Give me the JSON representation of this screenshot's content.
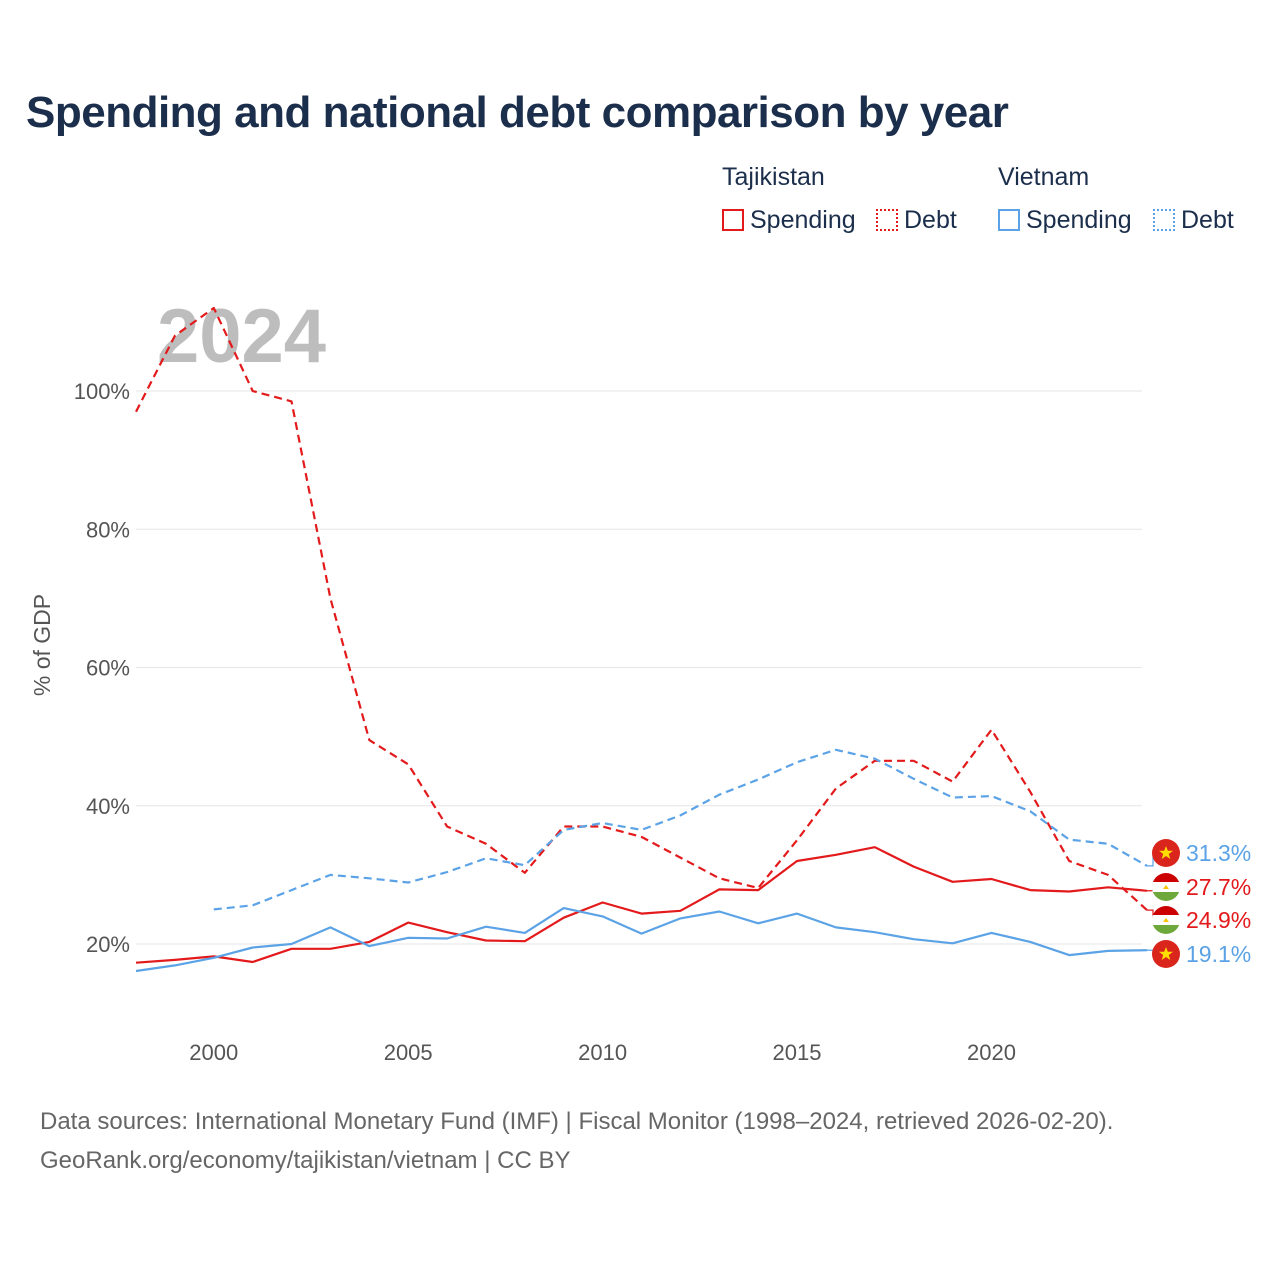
{
  "title": "Spending and national debt comparison by year",
  "legend": {
    "groups": [
      {
        "country": "Tajikistan",
        "color": "#e31a1c",
        "items": [
          {
            "label": "Spending",
            "style": "solid"
          },
          {
            "label": "Debt",
            "style": "dotted"
          }
        ]
      },
      {
        "country": "Vietnam",
        "color": "#5ba3e6",
        "items": [
          {
            "label": "Spending",
            "style": "solid"
          },
          {
            "label": "Debt",
            "style": "dotted"
          }
        ]
      }
    ]
  },
  "year_watermark": "2024",
  "footer": {
    "line1": "Data sources: International Monetary Fund (IMF) | Fiscal Monitor (1998–2024, retrieved 2026-02-20).",
    "line2": "GeoRank.org/economy/tajikistan/vietnam | CC BY"
  },
  "end_labels": [
    {
      "text": "31.3%",
      "color": "#5ba3e6",
      "flag": "vietnam-flag-icon"
    },
    {
      "text": "27.7%",
      "color": "#e31a1c",
      "flag": "tajikistan-flag-icon"
    },
    {
      "text": "24.9%",
      "color": "#e31a1c",
      "flag": "tajikistan-flag-icon"
    },
    {
      "text": "19.1%",
      "color": "#5ba3e6",
      "flag": "vietnam-flag-icon"
    }
  ],
  "chart_data": {
    "type": "line",
    "title": "Spending and national debt comparison by year",
    "xlabel": "",
    "ylabel": "% of GDP",
    "xlim": [
      1998,
      2024
    ],
    "ylim": [
      10,
      115
    ],
    "yticks": [
      20,
      40,
      60,
      80,
      100
    ],
    "ytick_labels": [
      "20%",
      "40%",
      "60%",
      "80%",
      "100%"
    ],
    "xticks": [
      2000,
      2005,
      2010,
      2015,
      2020
    ],
    "grid": true,
    "series": [
      {
        "name": "Tajikistan Debt",
        "country": "Tajikistan",
        "kind": "Debt",
        "color": "#e31a1c",
        "dash": "dashed",
        "x": [
          1998,
          1999,
          2000,
          2001,
          2002,
          2003,
          2004,
          2005,
          2006,
          2007,
          2008,
          2009,
          2010,
          2011,
          2012,
          2013,
          2014,
          2015,
          2016,
          2017,
          2018,
          2019,
          2020,
          2021,
          2022,
          2023,
          2024
        ],
        "values": [
          97,
          108,
          112,
          100,
          98.5,
          70,
          49.5,
          46,
          37,
          34.5,
          30.3,
          37,
          37,
          35.5,
          32.5,
          29.5,
          28.1,
          35,
          42.5,
          46.5,
          46.5,
          43.5,
          51,
          42,
          32,
          30,
          24.9
        ]
      },
      {
        "name": "Tajikistan Spending",
        "country": "Tajikistan",
        "kind": "Spending",
        "color": "#e31a1c",
        "dash": "solid",
        "x": [
          1998,
          1999,
          2000,
          2001,
          2002,
          2003,
          2004,
          2005,
          2006,
          2007,
          2008,
          2009,
          2010,
          2011,
          2012,
          2013,
          2014,
          2015,
          2016,
          2017,
          2018,
          2019,
          2020,
          2021,
          2022,
          2023,
          2024
        ],
        "values": [
          17.3,
          17.7,
          18.2,
          17.4,
          19.3,
          19.3,
          20.3,
          23.1,
          21.7,
          20.5,
          20.4,
          23.8,
          26,
          24.4,
          24.8,
          27.9,
          27.8,
          32,
          32.9,
          34,
          31.2,
          29,
          29.4,
          27.8,
          27.6,
          28.2,
          27.7
        ]
      },
      {
        "name": "Vietnam Debt",
        "country": "Vietnam",
        "kind": "Debt",
        "color": "#5ba3e6",
        "dash": "dashed",
        "x": [
          2000,
          2001,
          2002,
          2003,
          2004,
          2005,
          2006,
          2007,
          2008,
          2009,
          2010,
          2011,
          2012,
          2013,
          2014,
          2015,
          2016,
          2017,
          2018,
          2019,
          2020,
          2021,
          2022,
          2023,
          2024
        ],
        "values": [
          25,
          25.6,
          27.8,
          30,
          29.5,
          28.9,
          30.4,
          32.4,
          31.4,
          36.5,
          37.5,
          36.5,
          38.6,
          41.6,
          43.8,
          46.3,
          48.1,
          46.8,
          43.9,
          41.2,
          41.4,
          39.2,
          35.1,
          34.5,
          31.3
        ]
      },
      {
        "name": "Vietnam Spending",
        "country": "Vietnam",
        "kind": "Spending",
        "color": "#5ba3e6",
        "dash": "solid",
        "x": [
          1998,
          1999,
          2000,
          2001,
          2002,
          2003,
          2004,
          2005,
          2006,
          2007,
          2008,
          2009,
          2010,
          2011,
          2012,
          2013,
          2014,
          2015,
          2016,
          2017,
          2018,
          2019,
          2020,
          2021,
          2022,
          2023,
          2024
        ],
        "values": [
          16.1,
          16.9,
          18,
          19.5,
          20,
          22.4,
          19.7,
          20.9,
          20.8,
          22.5,
          21.6,
          25.2,
          24,
          21.5,
          23.7,
          24.7,
          23,
          24.4,
          22.4,
          21.7,
          20.7,
          20.1,
          21.6,
          20.3,
          18.4,
          19,
          19.1
        ]
      }
    ]
  }
}
